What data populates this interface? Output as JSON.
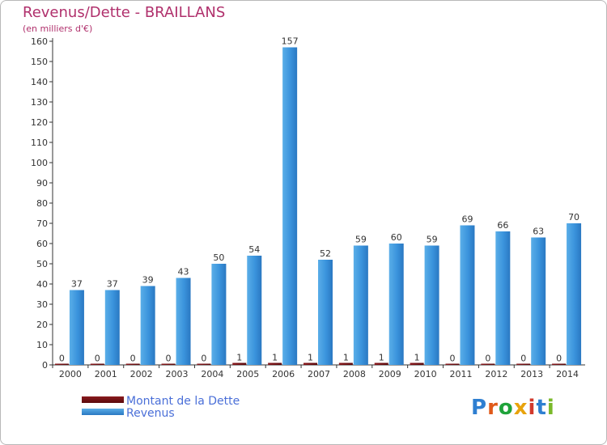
{
  "chart_data": {
    "type": "bar",
    "title": "Revenus/Dette - BRAILLANS",
    "subtitle": "(en milliers d'€)",
    "categories": [
      "2000",
      "2001",
      "2002",
      "2003",
      "2004",
      "2005",
      "2006",
      "2007",
      "2008",
      "2009",
      "2010",
      "2011",
      "2012",
      "2013",
      "2014"
    ],
    "series": [
      {
        "name": "Montant de la Dette",
        "color": "#6b0f12",
        "values": [
          0,
          0,
          0,
          0,
          0,
          1,
          1,
          1,
          1,
          1,
          1,
          0,
          0,
          0,
          0
        ]
      },
      {
        "name": "Revenus",
        "color": "#3f96dc",
        "values": [
          37,
          37,
          39,
          43,
          50,
          54,
          157,
          52,
          59,
          60,
          59,
          69,
          66,
          63,
          70
        ]
      }
    ],
    "yticks": [
      0,
      10,
      20,
      30,
      40,
      50,
      60,
      70,
      80,
      90,
      100,
      110,
      120,
      130,
      140,
      150,
      160
    ],
    "ylim": [
      0,
      160
    ],
    "grid": false,
    "legend_position": "bottom-left",
    "xlabel": "",
    "ylabel": ""
  },
  "logo": {
    "text": "Proxiti",
    "colors": [
      "#2e7fd1",
      "#e05a1a",
      "#1fa33a",
      "#e8a30c",
      "#d23a2c",
      "#2e7fd1",
      "#7ab92a"
    ]
  }
}
